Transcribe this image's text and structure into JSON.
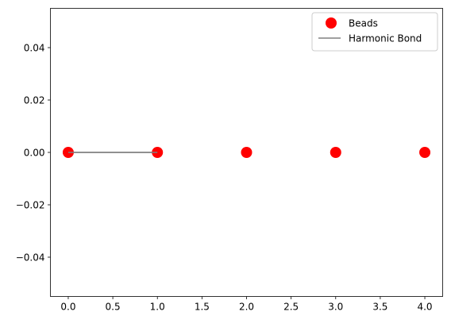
{
  "chart_data": {
    "type": "scatter",
    "title": "",
    "xlabel": "",
    "ylabel": "",
    "xlim": [
      -0.2,
      4.2
    ],
    "ylim": [
      -0.055,
      0.055
    ],
    "x_ticks": [
      0.0,
      0.5,
      1.0,
      1.5,
      2.0,
      2.5,
      3.0,
      3.5,
      4.0
    ],
    "x_tick_labels": [
      "0.0",
      "0.5",
      "1.0",
      "1.5",
      "2.0",
      "2.5",
      "3.0",
      "3.5",
      "4.0"
    ],
    "y_ticks": [
      -0.04,
      -0.02,
      0.0,
      0.02,
      0.04
    ],
    "y_tick_labels": [
      "−0.04",
      "−0.02",
      "0.00",
      "0.02",
      "0.04"
    ],
    "grid": false,
    "legend_position": "top-right",
    "series": [
      {
        "name": "Beads",
        "kind": "markers",
        "color": "#ff0000",
        "x": [
          0,
          1,
          2,
          3,
          4
        ],
        "y": [
          0,
          0,
          0,
          0,
          0
        ]
      },
      {
        "name": "Harmonic Bond",
        "kind": "line",
        "color": "#808080",
        "x": [
          0,
          1
        ],
        "y": [
          0,
          0
        ]
      }
    ]
  }
}
